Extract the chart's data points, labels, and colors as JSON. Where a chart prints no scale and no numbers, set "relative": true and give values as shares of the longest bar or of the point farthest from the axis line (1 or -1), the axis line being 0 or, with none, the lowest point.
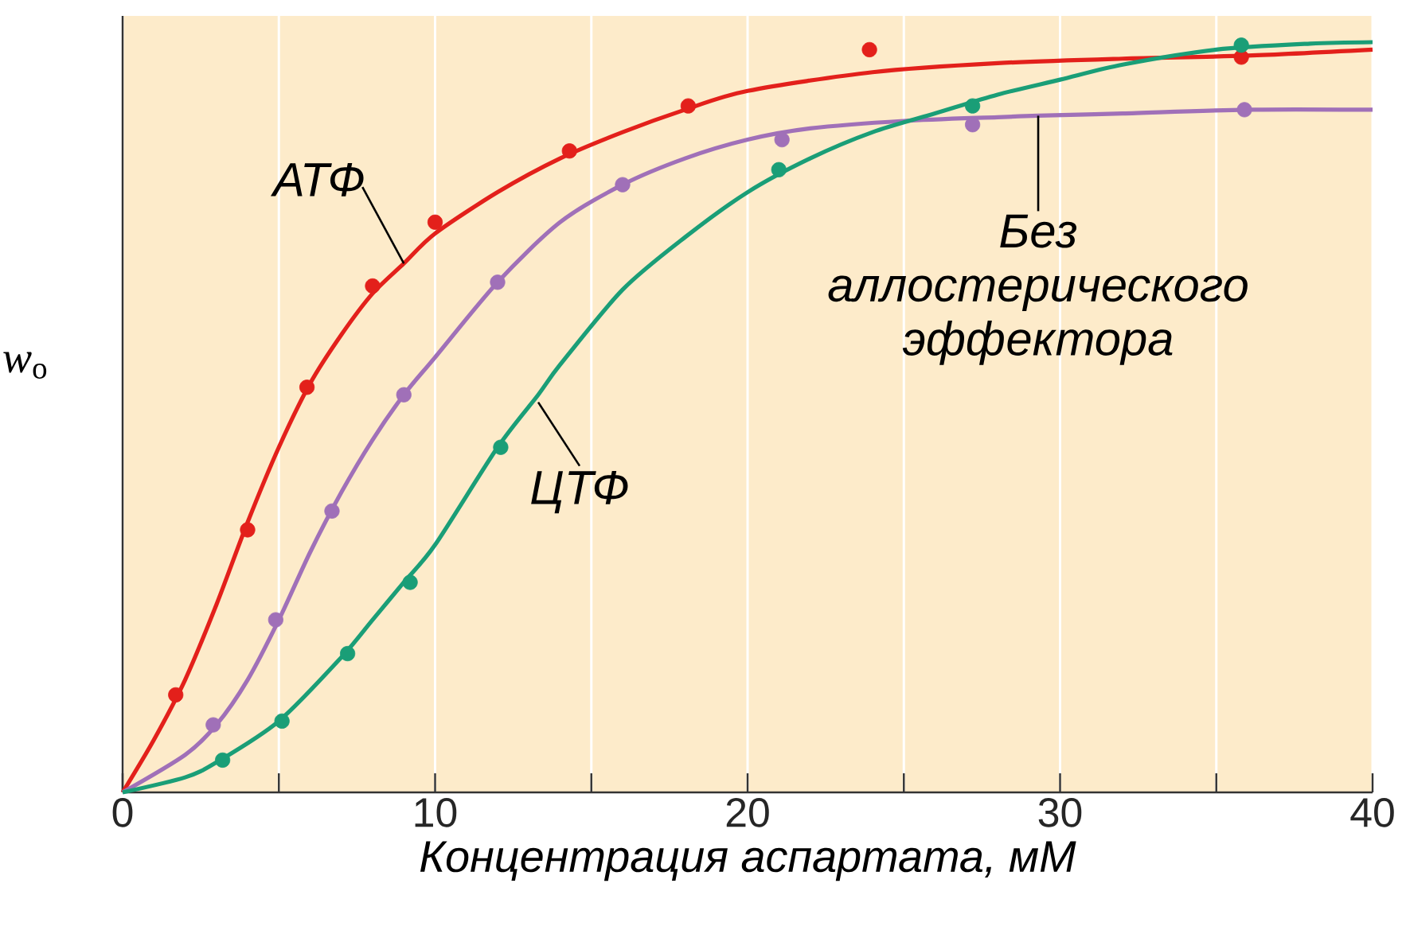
{
  "chart_data": {
    "type": "scatter",
    "relative": true,
    "marker": "circle",
    "line_style": "solid",
    "grid": "x",
    "xlabel": "Концентрация аспартата, мМ",
    "ylabel": "*w*$_{o}$",
    "xlim": [
      0,
      40
    ],
    "xticks": [
      0,
      {
        "value": 5,
        "label": null
      },
      10,
      {
        "value": 15,
        "label": null
      },
      20,
      {
        "value": 25,
        "label": null
      },
      30,
      {
        "value": 35,
        "label": null
      },
      40
    ],
    "series": [
      {
        "type": "line",
        "marker": "none",
        "color": "#e3201b",
        "x": [
          0,
          1,
          2,
          3,
          4,
          5,
          6,
          7,
          8,
          9,
          10,
          12,
          14,
          16,
          18,
          20,
          24,
          28,
          32,
          36,
          40
        ],
        "values": [
          0,
          0.07,
          0.15,
          0.25,
          0.36,
          0.46,
          0.545,
          0.61,
          0.665,
          0.705,
          0.745,
          0.8,
          0.845,
          0.88,
          0.91,
          0.935,
          0.96,
          0.972,
          0.978,
          0.982,
          0.99
        ]
      },
      {
        "type": "line",
        "marker": "none",
        "color": "#a070b8",
        "x": [
          0,
          2,
          3,
          4,
          5,
          6,
          7,
          8,
          9,
          10,
          12,
          14,
          16,
          18,
          20,
          22,
          25,
          28,
          29.3,
          32,
          36,
          40
        ],
        "values": [
          0,
          0.05,
          0.09,
          0.15,
          0.23,
          0.32,
          0.4,
          0.47,
          0.53,
          0.58,
          0.68,
          0.76,
          0.81,
          0.845,
          0.87,
          0.885,
          0.895,
          0.9,
          0.902,
          0.905,
          0.91,
          0.91
        ]
      },
      {
        "type": "line",
        "marker": "none",
        "color": "#1a9e77",
        "x": [
          0,
          2,
          3,
          5,
          7,
          8,
          9,
          10,
          12,
          13.3,
          14,
          16,
          18,
          20,
          22,
          24,
          26,
          28,
          30,
          32,
          35,
          38,
          40
        ],
        "values": [
          0,
          0.02,
          0.04,
          0.095,
          0.18,
          0.23,
          0.28,
          0.33,
          0.46,
          0.53,
          0.57,
          0.67,
          0.74,
          0.8,
          0.845,
          0.88,
          0.905,
          0.93,
          0.95,
          0.97,
          0.99,
          0.998,
          1.0
        ]
      },
      {
        "color": "#e3201b",
        "x": [
          1.7,
          4.0,
          5.9,
          8.0,
          10.0,
          14.3,
          18.1,
          23.9,
          35.8
        ],
        "values": [
          0.13,
          0.35,
          0.54,
          0.675,
          0.76,
          0.855,
          0.915,
          0.99,
          0.98
        ]
      },
      {
        "color": "#a070b8",
        "x": [
          2.9,
          4.9,
          6.7,
          9.0,
          12.0,
          16.0,
          21.1,
          27.2,
          35.9
        ],
        "values": [
          0.09,
          0.23,
          0.375,
          0.53,
          0.68,
          0.81,
          0.87,
          0.89,
          0.91
        ]
      },
      {
        "color": "#1a9e77",
        "x": [
          3.2,
          5.1,
          7.2,
          9.2,
          12.1,
          21.0,
          27.2,
          35.8
        ],
        "values": [
          0.043,
          0.095,
          0.185,
          0.28,
          0.46,
          0.83,
          0.915,
          0.996
        ]
      }
    ],
    "annotations": [
      {
        "text": "АТФ",
        "x": 9,
        "y": 0.705
      },
      {
        "text": "ЦТФ",
        "x": 13.3,
        "y": 0.52
      },
      {
        "text": "Без аллостерического эффектора",
        "x": 29.3,
        "y": 0.902
      }
    ]
  }
}
